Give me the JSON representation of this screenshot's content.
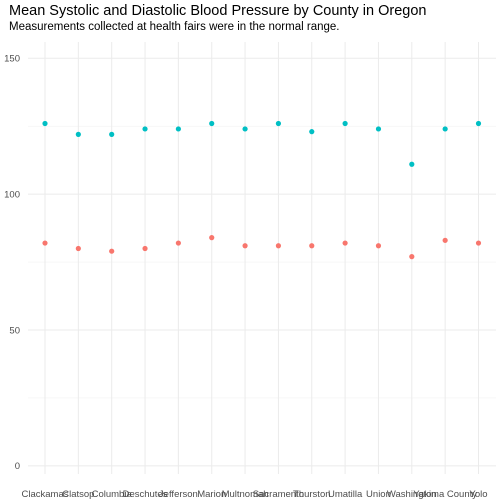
{
  "chart_data": {
    "type": "scatter",
    "title": "Mean Systolic and Diastolic Blood Pressure by County in Oregon",
    "subtitle": "Measurements collected at health fairs were in the normal range.",
    "xlabel": "",
    "ylabel": "",
    "categories": [
      "Clackamas",
      "Clatsop",
      "Columbia",
      "Deschutes",
      "Jefferson",
      "Marion",
      "Multnomah",
      "Sacramento",
      "Thurston",
      "Umatilla",
      "Union",
      "Washington",
      "Yakima County",
      "Yolo"
    ],
    "ylim": [
      -3,
      156
    ],
    "yticks": [
      0,
      50,
      100,
      150
    ],
    "grid": true,
    "legend": "none",
    "series": [
      {
        "values": [
          126,
          122,
          122,
          124,
          124,
          126,
          124,
          126,
          123,
          126,
          124,
          111,
          124,
          126
        ],
        "color": "#00BFC4"
      },
      {
        "values": [
          82,
          80,
          79,
          80,
          82,
          84,
          81,
          81,
          81,
          82,
          81,
          77,
          83,
          82
        ],
        "color": "#F8766D"
      }
    ]
  }
}
